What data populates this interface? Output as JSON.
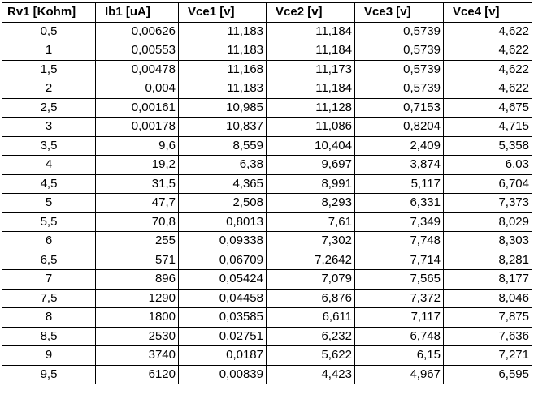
{
  "table": {
    "headers": [
      "Rv1 [Kohm]",
      "Ib1 [uA]",
      "Vce1 [v]",
      "Vce2 [v]",
      "Vce3 [v]",
      "Vce4 [v]"
    ],
    "rows": [
      [
        "0,5",
        "0,00626",
        "11,183",
        "11,184",
        "0,5739",
        "4,622"
      ],
      [
        "1",
        "0,00553",
        "11,183",
        "11,184",
        "0,5739",
        "4,622"
      ],
      [
        "1,5",
        "0,00478",
        "11,168",
        "11,173",
        "0,5739",
        "4,622"
      ],
      [
        "2",
        "0,004",
        "11,183",
        "11,184",
        "0,5739",
        "4,622"
      ],
      [
        "2,5",
        "0,00161",
        "10,985",
        "11,128",
        "0,7153",
        "4,675"
      ],
      [
        "3",
        "0,00178",
        "10,837",
        "11,086",
        "0,8204",
        "4,715"
      ],
      [
        "3,5",
        "9,6",
        "8,559",
        "10,404",
        "2,409",
        "5,358"
      ],
      [
        "4",
        "19,2",
        "6,38",
        "9,697",
        "3,874",
        "6,03"
      ],
      [
        "4,5",
        "31,5",
        "4,365",
        "8,991",
        "5,117",
        "6,704"
      ],
      [
        "5",
        "47,7",
        "2,508",
        "8,293",
        "6,331",
        "7,373"
      ],
      [
        "5,5",
        "70,8",
        "0,8013",
        "7,61",
        "7,349",
        "8,029"
      ],
      [
        "6",
        "255",
        "0,09338",
        "7,302",
        "7,748",
        "8,303"
      ],
      [
        "6,5",
        "571",
        "0,06709",
        "7,2642",
        "7,714",
        "8,281"
      ],
      [
        "7",
        "896",
        "0,05424",
        "7,079",
        "7,565",
        "8,177"
      ],
      [
        "7,5",
        "1290",
        "0,04458",
        "6,876",
        "7,372",
        "8,046"
      ],
      [
        "8",
        "1800",
        "0,03585",
        "6,611",
        "7,117",
        "7,875"
      ],
      [
        "8,5",
        "2530",
        "0,02751",
        "6,232",
        "6,748",
        "7,636"
      ],
      [
        "9",
        "3740",
        "0,0187",
        "5,622",
        "6,15",
        "7,271"
      ],
      [
        "9,5",
        "6120",
        "0,00839",
        "4,423",
        "4,967",
        "6,595"
      ]
    ]
  }
}
